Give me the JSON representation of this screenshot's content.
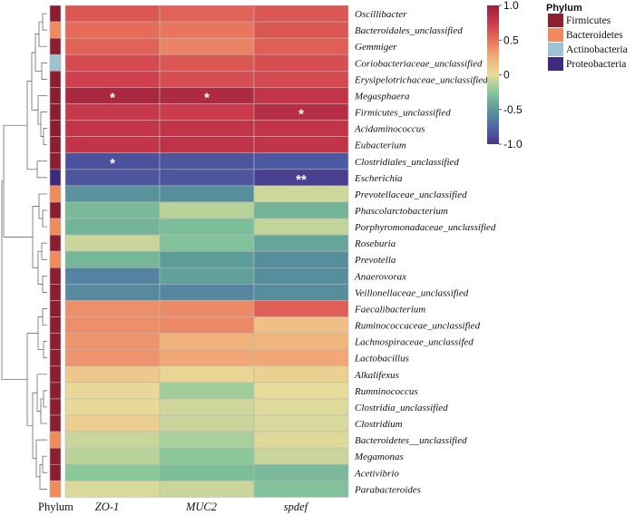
{
  "chart_data": {
    "type": "heatmap",
    "columns": [
      "ZO-1",
      "MUC2",
      "spdef"
    ],
    "annotation_label": "Phylum",
    "rows": [
      "Oscillibacter",
      "Bacteroidales_unclassified",
      "Gemmiger",
      "Coriobacteriaceae_unclassified",
      "Erysipelotrichaceae_unclassified",
      "Megasphaera",
      "Firmicutes_unclassified",
      "Acidaminococcus",
      "Eubacterium",
      "Clostridiales_unclassified",
      "Escherichia",
      "Prevotellaceae_unclassified",
      "Phascolarctobacterium",
      "Porphyromonadaceae_unclassified",
      "Roseburia",
      "Prevotella",
      "Anaerovorax",
      "Veillonellaceae_unclassified",
      "Faecalibacterium",
      "Ruminococcaceae_unclassified",
      "Lachnospiraceae_unclassifed",
      "Lactobacillus",
      "Alkalifexus",
      "Rumninococcus",
      "Clostridia_unclassified",
      "Clostridium",
      "Bacteroidetes__unclassified",
      "Megamonas",
      "Acetivibrio",
      "Parabacteroides"
    ],
    "row_phylum": [
      "Firmicutes",
      "Bacteroidetes",
      "Firmicutes",
      "Actinobacteria",
      "Firmicutes",
      "Firmicutes",
      "Firmicutes",
      "Firmicutes",
      "Firmicutes",
      "Firmicutes",
      "Proteobacteria",
      "Bacteroidetes",
      "Firmicutes",
      "Bacteroidetes",
      "Firmicutes",
      "Bacteroidetes",
      "Firmicutes",
      "Firmicutes",
      "Firmicutes",
      "Firmicutes",
      "Firmicutes",
      "Firmicutes",
      "Firmicutes",
      "Firmicutes",
      "Firmicutes",
      "Firmicutes",
      "Bacteroidetes",
      "Firmicutes",
      "Firmicutes",
      "Bacteroidetes"
    ],
    "values": [
      [
        0.62,
        0.56,
        0.62
      ],
      [
        0.52,
        0.48,
        0.62
      ],
      [
        0.56,
        0.42,
        0.58
      ],
      [
        0.68,
        0.62,
        0.66
      ],
      [
        0.72,
        0.66,
        0.68
      ],
      [
        0.92,
        0.9,
        0.8
      ],
      [
        0.78,
        0.76,
        0.86
      ],
      [
        0.8,
        0.8,
        0.8
      ],
      [
        0.8,
        0.82,
        0.8
      ],
      [
        -0.86,
        -0.84,
        -0.82
      ],
      [
        -0.84,
        -0.84,
        -0.94
      ],
      [
        -0.54,
        -0.56,
        -0.06
      ],
      [
        -0.32,
        -0.12,
        -0.36
      ],
      [
        -0.36,
        -0.3,
        -0.1
      ],
      [
        -0.08,
        -0.28,
        -0.44
      ],
      [
        -0.34,
        -0.48,
        -0.56
      ],
      [
        -0.62,
        -0.46,
        -0.56
      ],
      [
        -0.58,
        -0.6,
        -0.56
      ],
      [
        0.38,
        0.4,
        0.58
      ],
      [
        0.38,
        0.4,
        0.16
      ],
      [
        0.36,
        0.24,
        0.22
      ],
      [
        0.36,
        0.28,
        0.28
      ],
      [
        0.12,
        0.04,
        0.06
      ],
      [
        0.02,
        -0.18,
        0.0
      ],
      [
        0.02,
        -0.06,
        -0.02
      ],
      [
        0.08,
        -0.08,
        -0.04
      ],
      [
        -0.08,
        -0.16,
        -0.02
      ],
      [
        -0.12,
        -0.24,
        -0.08
      ],
      [
        -0.24,
        -0.3,
        -0.32
      ],
      [
        -0.04,
        -0.08,
        -0.28
      ]
    ],
    "annotations": [
      {
        "row": "Megasphaera",
        "col": "ZO-1",
        "text": "*"
      },
      {
        "row": "Megasphaera",
        "col": "MUC2",
        "text": "*"
      },
      {
        "row": "Firmicutes_unclassified",
        "col": "spdef",
        "text": "*"
      },
      {
        "row": "Clostridiales_unclassified",
        "col": "ZO-1",
        "text": "*"
      },
      {
        "row": "Escherichia",
        "col": "spdef",
        "text": "**"
      }
    ],
    "colorbar": {
      "range": [
        -1.0,
        1.0
      ],
      "ticks": [
        "1.0",
        "0.5",
        "0",
        "-0.5",
        "-1.0"
      ],
      "colors": [
        "#49348a",
        "#4f67a8",
        "#5a9a9a",
        "#86c79a",
        "#e8dc9a",
        "#f2b07a",
        "#e8705a",
        "#cc3b4c",
        "#9a1e3a"
      ]
    },
    "legend": {
      "title": "Phylum",
      "items": [
        {
          "label": "Firmicutes",
          "color": "#8b1e2f"
        },
        {
          "label": "Bacteroidetes",
          "color": "#f08a5d"
        },
        {
          "label": "Actinobacteria",
          "color": "#9dc3d3"
        },
        {
          "label": "Proteobacteria",
          "color": "#3f2a7e"
        }
      ]
    }
  }
}
